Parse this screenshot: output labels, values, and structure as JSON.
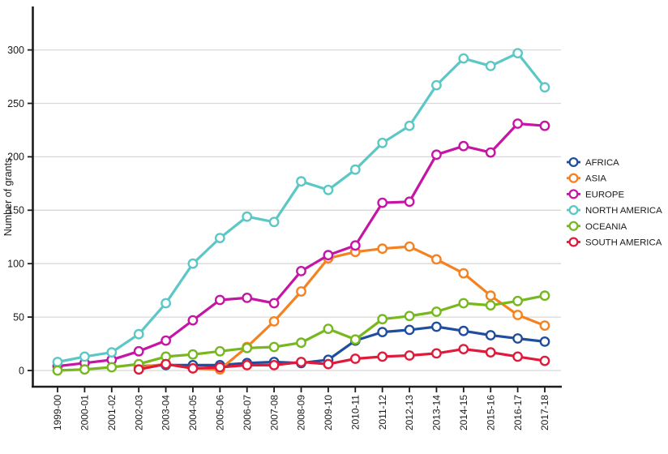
{
  "chart_data": {
    "type": "line",
    "title": "",
    "xlabel": "",
    "ylabel": "Number of grants",
    "categories": [
      "1999-00",
      "2000-01",
      "2001-02",
      "2002-03",
      "2003-04",
      "2004-05",
      "2005-06",
      "2006-07",
      "2007-08",
      "2008-09",
      "2009-10",
      "2010-11",
      "2011-12",
      "2012-13",
      "2013-14",
      "2014-15",
      "2015-16",
      "2016-17",
      "2017-18"
    ],
    "y_ticks": [
      0,
      50,
      100,
      150,
      200,
      250,
      300
    ],
    "ylim": [
      0,
      338
    ],
    "grid": "horizontal-major-only",
    "legend_position": "right-middle",
    "marker": "open-circle-white-fill",
    "series": [
      {
        "name": "AFRICA",
        "color": "#1f4e9f",
        "values": [
          null,
          null,
          null,
          4,
          5,
          5,
          5,
          7,
          8,
          7,
          10,
          28,
          36,
          38,
          41,
          37,
          33,
          30,
          27
        ]
      },
      {
        "name": "ASIA",
        "color": "#f58220",
        "values": [
          null,
          null,
          null,
          3,
          6,
          2,
          1,
          22,
          46,
          74,
          105,
          111,
          114,
          116,
          104,
          91,
          70,
          52,
          42
        ]
      },
      {
        "name": "EUROPE",
        "color": "#c515a5",
        "values": [
          4,
          7,
          10,
          18,
          28,
          47,
          66,
          68,
          63,
          93,
          108,
          117,
          157,
          158,
          202,
          210,
          204,
          231,
          229
        ]
      },
      {
        "name": "NORTH AMERICA",
        "color": "#5cc8c6",
        "values": [
          8,
          13,
          17,
          34,
          63,
          100,
          124,
          144,
          139,
          177,
          169,
          188,
          213,
          229,
          267,
          292,
          285,
          297,
          265
        ]
      },
      {
        "name": "OCEANIA",
        "color": "#76b81e",
        "values": [
          0,
          1,
          3,
          6,
          13,
          15,
          18,
          21,
          22,
          26,
          39,
          29,
          48,
          51,
          55,
          63,
          61,
          65,
          70
        ]
      },
      {
        "name": "SOUTH AMERICA",
        "color": "#e01a3a",
        "values": [
          null,
          null,
          null,
          1,
          6,
          2,
          3,
          5,
          5,
          8,
          6,
          11,
          13,
          14,
          16,
          20,
          17,
          13,
          9
        ]
      }
    ]
  },
  "colors": {
    "background": "#ffffff",
    "gridline": "#d8d8d8",
    "axis": "#1c1c1c",
    "tick_text": "#1a1a1a"
  }
}
